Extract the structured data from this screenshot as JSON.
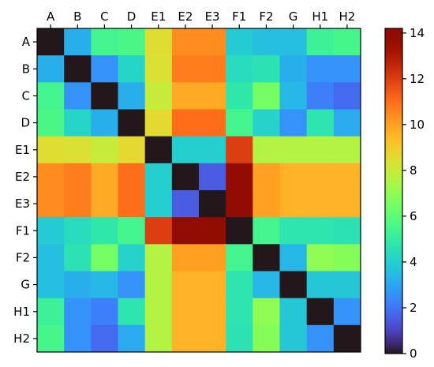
{
  "chart_data": {
    "type": "heatmap",
    "title": "",
    "xlabel": "",
    "ylabel": "",
    "x_tick_position": "top",
    "categories": [
      "A",
      "B",
      "C",
      "D",
      "E1",
      "E2",
      "E3",
      "F1",
      "F2",
      "G",
      "H1",
      "H2"
    ],
    "colormap": "turbo",
    "colorbar": {
      "min": 0,
      "max": 14.2,
      "ticks": [
        0,
        2,
        4,
        6,
        8,
        10,
        12,
        14
      ]
    },
    "values": [
      [
        0,
        3.2,
        5.4,
        5.6,
        8.5,
        10.4,
        10.4,
        3.9,
        3.6,
        3.6,
        5.2,
        5.5
      ],
      [
        3.2,
        0,
        2.6,
        4.2,
        8.4,
        10.7,
        10.7,
        4.4,
        4.6,
        3.2,
        2.6,
        2.6
      ],
      [
        5.4,
        2.6,
        0,
        3.2,
        8.0,
        9.8,
        9.8,
        4.8,
        6.5,
        3.4,
        2.2,
        1.8
      ],
      [
        5.6,
        4.2,
        3.2,
        0,
        8.6,
        11.0,
        11.0,
        5.4,
        4.1,
        2.6,
        4.7,
        3.1
      ],
      [
        8.5,
        8.4,
        8.0,
        8.6,
        0,
        4.0,
        4.0,
        12.0,
        7.6,
        7.6,
        7.6,
        7.6
      ],
      [
        10.4,
        10.7,
        9.8,
        11.0,
        4.0,
        0,
        1.5,
        14.0,
        10.0,
        9.6,
        9.6,
        9.6
      ],
      [
        10.4,
        10.7,
        9.8,
        11.0,
        4.0,
        1.5,
        0,
        14.0,
        10.0,
        9.6,
        9.6,
        9.6
      ],
      [
        3.9,
        4.4,
        4.8,
        5.4,
        12.0,
        14.0,
        14.0,
        0,
        5.4,
        4.7,
        4.7,
        4.6
      ],
      [
        3.6,
        4.6,
        6.5,
        4.1,
        7.6,
        10.0,
        10.0,
        5.4,
        0,
        3.4,
        7.0,
        6.8
      ],
      [
        3.6,
        3.2,
        3.4,
        2.6,
        7.6,
        9.6,
        9.6,
        4.7,
        3.4,
        0,
        3.8,
        3.8
      ],
      [
        5.2,
        2.6,
        2.2,
        4.7,
        7.6,
        9.6,
        9.6,
        4.7,
        7.0,
        3.8,
        0,
        2.6
      ],
      [
        5.5,
        2.6,
        1.8,
        3.1,
        7.6,
        9.6,
        9.6,
        4.6,
        6.8,
        3.8,
        2.6,
        0
      ]
    ]
  }
}
